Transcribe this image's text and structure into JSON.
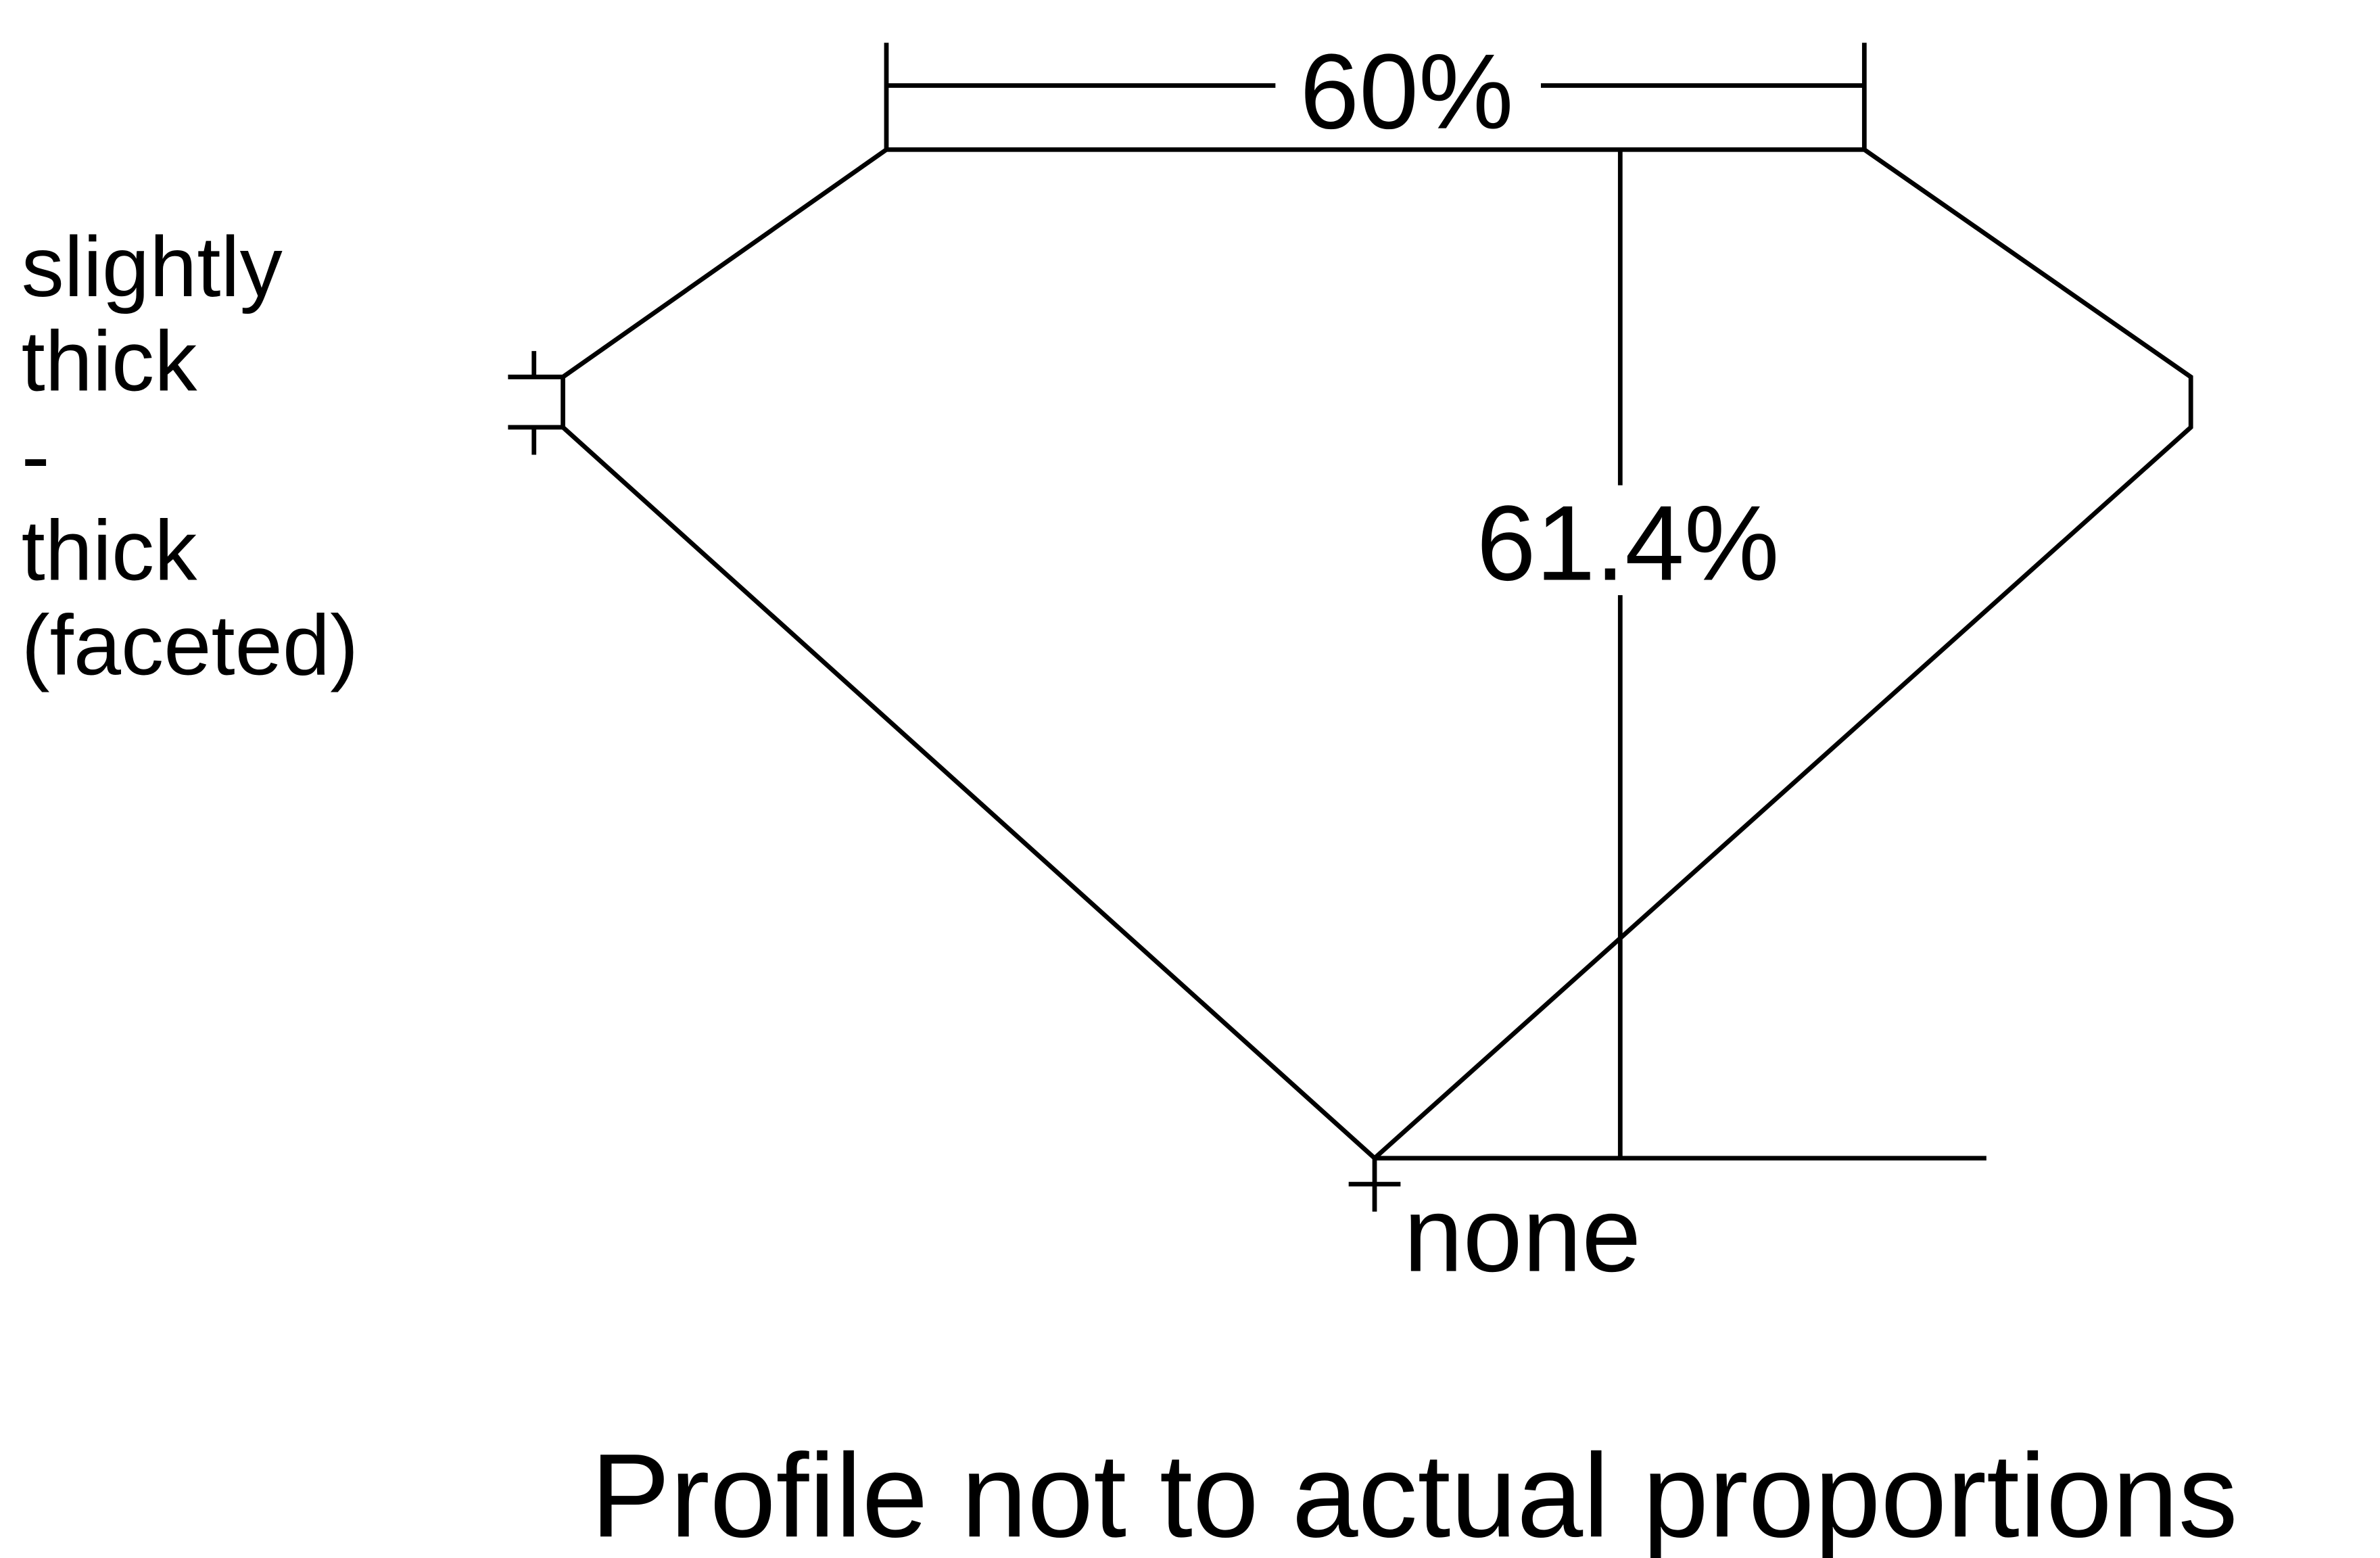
{
  "diagram": {
    "table_label": "60%",
    "depth_label": "61.4%",
    "culet_label": "none",
    "girdle_label_lines": [
      "slightly",
      "thick",
      "-",
      "thick",
      "(faceted)"
    ],
    "footer_note": "Profile not to actual proportions"
  },
  "colors": {
    "line": "#000000",
    "background": "#ffffff"
  }
}
